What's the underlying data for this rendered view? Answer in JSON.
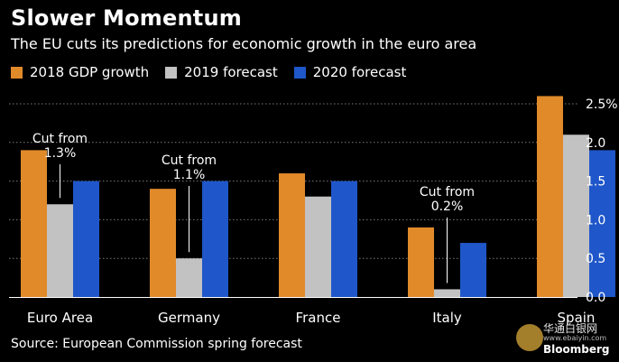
{
  "chart_data": {
    "type": "bar",
    "title": "Slower Momentum",
    "subtitle": "The EU cuts its predictions for economic growth in the euro area",
    "categories": [
      "Euro Area",
      "Germany",
      "France",
      "Italy",
      "Spain"
    ],
    "series": [
      {
        "name": "2018 GDP growth",
        "color": "#e08a2a",
        "values": [
          1.9,
          1.4,
          1.6,
          0.9,
          2.6
        ]
      },
      {
        "name": "2019 forecast",
        "color": "#c2c2c2",
        "values": [
          1.2,
          0.5,
          1.3,
          0.1,
          2.1
        ]
      },
      {
        "name": "2020 forecast",
        "color": "#1f56c9",
        "values": [
          1.5,
          1.5,
          1.5,
          0.7,
          1.9
        ]
      }
    ],
    "ylim": [
      0,
      2.5
    ],
    "yticks": [
      "0.0",
      "0.5",
      "1.0",
      "1.5",
      "2.0",
      "2.5%"
    ],
    "ytick_values": [
      0,
      0.5,
      1.0,
      1.5,
      2.0,
      2.5
    ],
    "y_axis_side": "right",
    "grid": "dotted horizontal",
    "legend_position": "top-left",
    "annotations": [
      {
        "category": "Euro Area",
        "text_line1": "Cut from",
        "text_line2": "1.3%"
      },
      {
        "category": "Germany",
        "text_line1": "Cut from",
        "text_line2": "1.1%"
      },
      {
        "category": "Italy",
        "text_line1": "Cut from",
        "text_line2": "0.2%"
      }
    ],
    "source": "Source: European Commission spring forecast"
  },
  "watermark": {
    "line1": "华通白银网",
    "line2": "www.ebaiyin.com",
    "line3": "Bloomberg"
  }
}
